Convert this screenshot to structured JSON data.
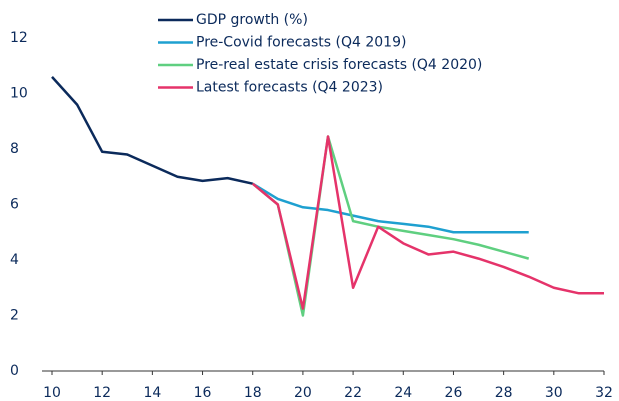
{
  "chart_data": {
    "type": "line",
    "x": [
      10,
      11,
      12,
      13,
      14,
      15,
      16,
      17,
      18,
      19,
      20,
      21,
      22,
      23,
      24,
      25,
      26,
      27,
      28,
      29,
      30,
      31,
      32
    ],
    "series": [
      {
        "name": "GDP growth (%)",
        "color": "#0b2a5b",
        "values": [
          10.6,
          9.6,
          7.9,
          7.8,
          7.4,
          7.0,
          6.85,
          6.95,
          6.75,
          null,
          null,
          null,
          null,
          null,
          null,
          null,
          null,
          null,
          null,
          null,
          null,
          null,
          null
        ]
      },
      {
        "name": "Pre-Covid forecasts (Q4 2019)",
        "color": "#1ea0d0",
        "values": [
          null,
          null,
          null,
          null,
          null,
          null,
          null,
          null,
          6.75,
          6.2,
          5.9,
          5.8,
          5.6,
          5.4,
          5.3,
          5.2,
          5.0,
          5.0,
          5.0,
          5.0,
          null,
          null,
          null
        ]
      },
      {
        "name": "Pre-real estate crisis forecasts (Q4 2020)",
        "color": "#5fcf80",
        "values": [
          null,
          null,
          null,
          null,
          null,
          null,
          null,
          null,
          6.75,
          6.0,
          2.0,
          8.45,
          5.4,
          5.2,
          5.05,
          4.9,
          4.75,
          4.55,
          4.3,
          4.05,
          null,
          null,
          null
        ]
      },
      {
        "name": "Latest forecasts (Q4 2023)",
        "color": "#e5336a",
        "values": [
          null,
          null,
          null,
          null,
          null,
          null,
          null,
          null,
          6.75,
          6.0,
          2.25,
          8.45,
          3.0,
          5.2,
          4.6,
          4.2,
          4.3,
          4.05,
          3.75,
          3.4,
          3.0,
          2.8,
          2.8
        ]
      }
    ],
    "xlim": [
      10,
      32
    ],
    "xticks": [
      10,
      12,
      14,
      16,
      18,
      20,
      22,
      24,
      26,
      28,
      30,
      32
    ],
    "ylim": [
      0,
      12
    ],
    "yticks": [
      0,
      2,
      4,
      6,
      8,
      10,
      12
    ],
    "grid": false,
    "legend": "top"
  }
}
